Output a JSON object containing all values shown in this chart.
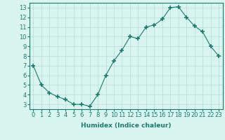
{
  "x": [
    0,
    1,
    2,
    3,
    4,
    5,
    6,
    7,
    8,
    9,
    10,
    11,
    12,
    13,
    14,
    15,
    16,
    17,
    18,
    19,
    20,
    21,
    22,
    23
  ],
  "y": [
    7.0,
    5.0,
    4.2,
    3.8,
    3.5,
    3.0,
    3.0,
    2.8,
    4.0,
    6.0,
    7.5,
    8.6,
    10.0,
    9.8,
    11.0,
    11.2,
    11.8,
    13.0,
    13.1,
    12.0,
    11.1,
    10.5,
    9.0,
    8.0
  ],
  "line_color": "#1a7a6e",
  "marker": "+",
  "marker_size": 4,
  "bg_color": "#d8f5f0",
  "grid_color": "#b8dcd8",
  "xlabel": "Humidex (Indice chaleur)",
  "ylim": [
    2.5,
    13.5
  ],
  "xlim": [
    -0.5,
    23.5
  ],
  "yticks": [
    3,
    4,
    5,
    6,
    7,
    8,
    9,
    10,
    11,
    12,
    13
  ],
  "xticks": [
    0,
    1,
    2,
    3,
    4,
    5,
    6,
    7,
    8,
    9,
    10,
    11,
    12,
    13,
    14,
    15,
    16,
    17,
    18,
    19,
    20,
    21,
    22,
    23
  ],
  "tick_color": "#1a7a6e",
  "label_fontsize": 6.5,
  "tick_fontsize": 6.0
}
